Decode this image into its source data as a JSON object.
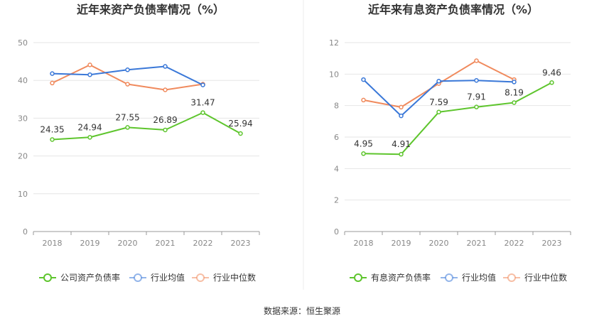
{
  "source": "数据来源：恒生聚源",
  "chart_data": [
    {
      "type": "line",
      "title": "近年来资产负债率情况（%）",
      "categories": [
        "2018",
        "2019",
        "2020",
        "2021",
        "2022",
        "2023"
      ],
      "ylim": [
        0,
        50
      ],
      "yticks": [
        0,
        10,
        20,
        30,
        40,
        50
      ],
      "series": [
        {
          "name": "公司资产负债率",
          "color": "#5ec52d",
          "values": [
            24.35,
            24.94,
            27.55,
            26.89,
            31.47,
            25.94
          ],
          "labels": [
            "24.35",
            "24.94",
            "27.55",
            "26.89",
            "31.47",
            "25.94"
          ]
        },
        {
          "name": "行业均值",
          "color": "#3a78d8",
          "values": [
            41.8,
            41.5,
            42.8,
            43.7,
            38.8,
            null
          ]
        },
        {
          "name": "行业中位数",
          "color": "#f08a5d",
          "values": [
            39.3,
            44.1,
            39.0,
            37.5,
            39.0,
            null
          ]
        }
      ]
    },
    {
      "type": "line",
      "title": "近年来有息资产负债率情况（%）",
      "categories": [
        "2018",
        "2019",
        "2020",
        "2021",
        "2022",
        "2023"
      ],
      "ylim": [
        0,
        12
      ],
      "yticks": [
        0,
        2,
        4,
        6,
        8,
        10,
        12
      ],
      "series": [
        {
          "name": "有息资产负债率",
          "color": "#5ec52d",
          "values": [
            4.95,
            4.91,
            7.59,
            7.91,
            8.19,
            9.46
          ],
          "labels": [
            "4.95",
            "4.91",
            "7.59",
            "7.91",
            "8.19",
            "9.46"
          ]
        },
        {
          "name": "行业均值",
          "color": "#3a78d8",
          "values": [
            9.65,
            7.35,
            9.55,
            9.6,
            9.5,
            null
          ]
        },
        {
          "name": "行业中位数",
          "color": "#f08a5d",
          "values": [
            8.35,
            7.9,
            9.4,
            10.85,
            9.65,
            null
          ]
        }
      ]
    }
  ]
}
